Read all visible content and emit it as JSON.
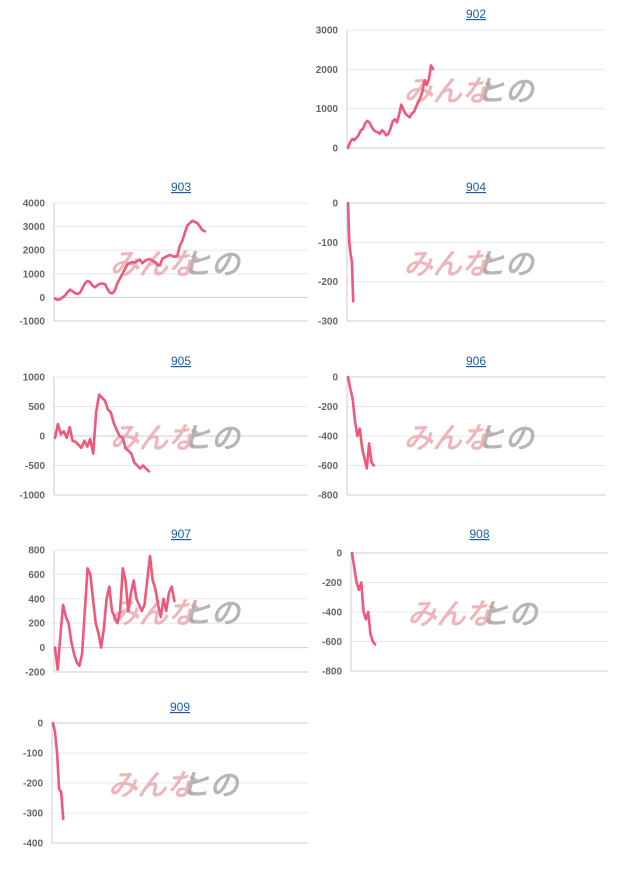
{
  "colors": {
    "series": "#f0587a",
    "title": "#1a5ea8",
    "tick": "#666666"
  },
  "watermark": {
    "part1": "みんな",
    "part2": "ヒの"
  },
  "chart_data": [
    {
      "type": "line",
      "title": "902",
      "ylim": [
        0,
        3000
      ],
      "yticks": [
        0,
        1000,
        2000,
        3000
      ],
      "values": [
        0,
        150,
        230,
        200,
        260,
        330,
        450,
        480,
        620,
        690,
        650,
        550,
        460,
        420,
        400,
        360,
        450,
        400,
        320,
        360,
        500,
        680,
        730,
        650,
        850,
        1100,
        980,
        870,
        820,
        780,
        880,
        920,
        1050,
        1180,
        1280,
        1450,
        1720,
        1600,
        1750,
        2100,
        2000
      ]
    },
    {
      "type": "line",
      "title": "903",
      "ylim": [
        -1000,
        4000
      ],
      "yticks": [
        -1000,
        0,
        1000,
        2000,
        3000,
        4000
      ],
      "values": [
        -50,
        -100,
        -80,
        0,
        80,
        220,
        330,
        260,
        180,
        150,
        200,
        400,
        600,
        700,
        650,
        500,
        430,
        520,
        580,
        590,
        560,
        350,
        200,
        170,
        300,
        600,
        800,
        1000,
        1200,
        1400,
        1450,
        1500,
        1480,
        1550,
        1600,
        1450,
        1550,
        1600,
        1620,
        1560,
        1500,
        1400,
        1350,
        1650,
        1700,
        1750,
        1800,
        1750,
        1720,
        1780,
        2200,
        2400,
        2750,
        3050,
        3150,
        3250,
        3200,
        3150,
        3000,
        2850,
        2800
      ]
    },
    {
      "type": "line",
      "title": "904",
      "ylim": [
        -300,
        0
      ],
      "yticks": [
        -300,
        -200,
        -100,
        0
      ],
      "values": [
        0,
        -100,
        -130,
        -150,
        -250
      ]
    },
    {
      "type": "line",
      "title": "905",
      "ylim": [
        -1000,
        1000
      ],
      "yticks": [
        -1000,
        -500,
        0,
        500,
        1000
      ],
      "values": [
        -30,
        200,
        30,
        80,
        -30,
        150,
        -80,
        -100,
        -150,
        -200,
        -80,
        -180,
        -50,
        -300,
        400,
        700,
        650,
        600,
        450,
        400,
        220,
        100,
        0,
        -30,
        -200,
        -250,
        -300,
        -450,
        -500,
        -550,
        -500,
        -550,
        -600
      ]
    },
    {
      "type": "line",
      "title": "906",
      "ylim": [
        -800,
        0
      ],
      "yticks": [
        -800,
        -600,
        -400,
        -200,
        0
      ],
      "values": [
        0,
        -80,
        -150,
        -300,
        -400,
        -350,
        -480,
        -550,
        -620,
        -450,
        -580,
        -600
      ]
    },
    {
      "type": "line",
      "title": "907",
      "ylim": [
        -200,
        800
      ],
      "yticks": [
        -200,
        0,
        200,
        400,
        600,
        800
      ],
      "values": [
        0,
        -180,
        100,
        350,
        250,
        200,
        50,
        -50,
        -120,
        -150,
        -50,
        300,
        650,
        600,
        400,
        200,
        120,
        0,
        150,
        400,
        500,
        300,
        250,
        200,
        300,
        650,
        550,
        300,
        450,
        550,
        400,
        350,
        300,
        350,
        550,
        750,
        550,
        480,
        350,
        250,
        400,
        300,
        450,
        500,
        380
      ]
    },
    {
      "type": "line",
      "title": "908",
      "ylim": [
        -800,
        0
      ],
      "yticks": [
        -800,
        -600,
        -400,
        -200,
        0
      ],
      "values": [
        0,
        -100,
        -200,
        -250,
        -200,
        -400,
        -450,
        -400,
        -550,
        -600,
        -620
      ]
    },
    {
      "type": "line",
      "title": "909",
      "ylim": [
        -400,
        0
      ],
      "yticks": [
        -400,
        -300,
        -200,
        -100,
        0
      ],
      "values": [
        0,
        -30,
        -100,
        -220,
        -230,
        -320
      ]
    }
  ]
}
